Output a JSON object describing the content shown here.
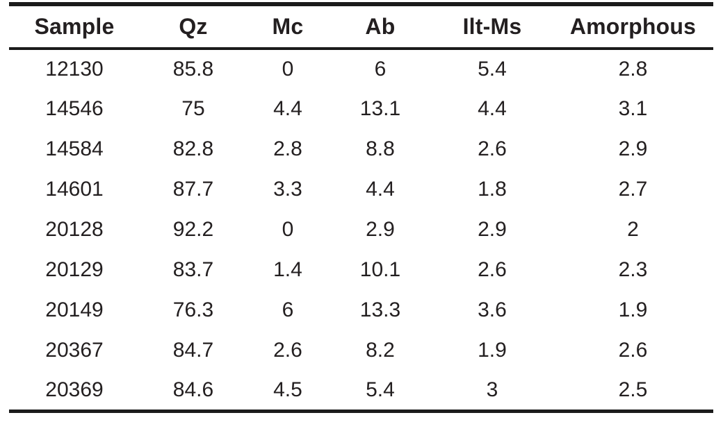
{
  "colors": {
    "background": "#ffffff",
    "text": "#231f20",
    "rule": "#1b1b1b"
  },
  "table": {
    "columns": [
      "Sample",
      "Qz",
      "Mc",
      "Ab",
      "Ilt-Ms",
      "Amorphous"
    ],
    "rows": [
      [
        "12130",
        "85.8",
        "0",
        "6",
        "5.4",
        "2.8"
      ],
      [
        "14546",
        "75",
        "4.4",
        "13.1",
        "4.4",
        "3.1"
      ],
      [
        "14584",
        "82.8",
        "2.8",
        "8.8",
        "2.6",
        "2.9"
      ],
      [
        "14601",
        "87.7",
        "3.3",
        "4.4",
        "1.8",
        "2.7"
      ],
      [
        "20128",
        "92.2",
        "0",
        "2.9",
        "2.9",
        "2"
      ],
      [
        "20129",
        "83.7",
        "1.4",
        "10.1",
        "2.6",
        "2.3"
      ],
      [
        "20149",
        "76.3",
        "6",
        "13.3",
        "3.6",
        "1.9"
      ],
      [
        "20367",
        "84.7",
        "2.6",
        "8.2",
        "1.9",
        "2.6"
      ],
      [
        "20369",
        "84.6",
        "4.5",
        "5.4",
        "3",
        "2.5"
      ]
    ]
  },
  "chart_data": {
    "type": "table",
    "columns": [
      "Sample",
      "Qz",
      "Mc",
      "Ab",
      "Ilt-Ms",
      "Amorphous"
    ],
    "rows": [
      [
        "12130",
        85.8,
        0,
        6,
        5.4,
        2.8
      ],
      [
        "14546",
        75,
        4.4,
        13.1,
        4.4,
        3.1
      ],
      [
        "14584",
        82.8,
        2.8,
        8.8,
        2.6,
        2.9
      ],
      [
        "14601",
        87.7,
        3.3,
        4.4,
        1.8,
        2.7
      ],
      [
        "20128",
        92.2,
        0,
        2.9,
        2.9,
        2
      ],
      [
        "20129",
        83.7,
        1.4,
        10.1,
        2.6,
        2.3
      ],
      [
        "20149",
        76.3,
        6,
        13.3,
        3.6,
        1.9
      ],
      [
        "20367",
        84.7,
        2.6,
        8.2,
        1.9,
        2.6
      ],
      [
        "20369",
        84.6,
        4.5,
        5.4,
        3,
        2.5
      ]
    ]
  }
}
